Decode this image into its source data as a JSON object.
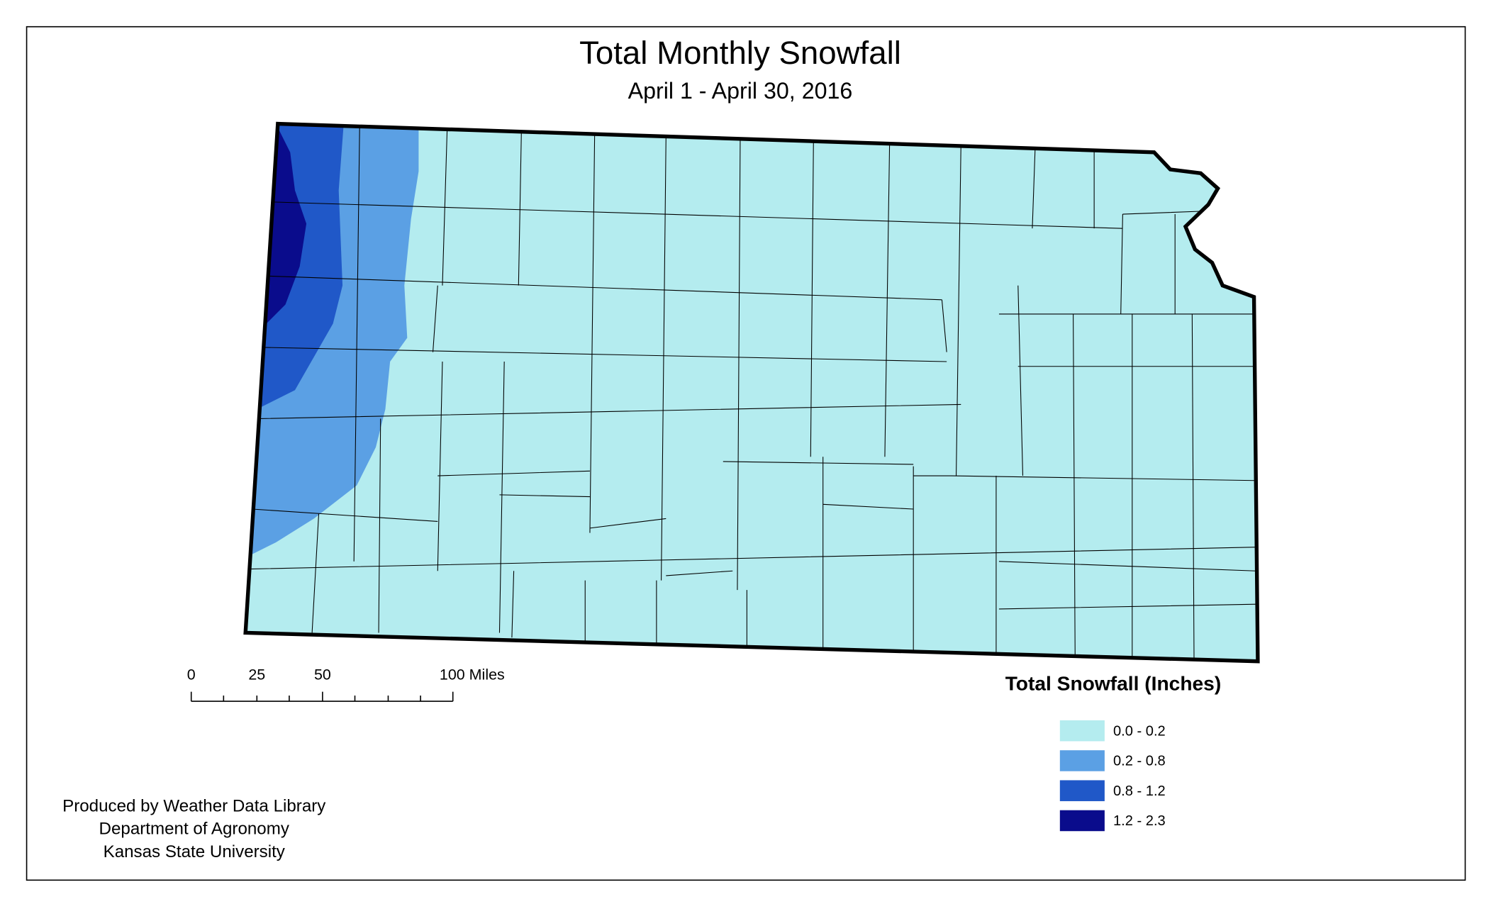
{
  "header": {
    "title": "Total Monthly Snowfall",
    "subtitle": "April 1 - April 30, 2016"
  },
  "scale_bar": {
    "labels": [
      "0",
      "25",
      "50",
      "100 Miles"
    ]
  },
  "legend": {
    "title": "Total Snowfall (Inches)",
    "items": [
      {
        "label": "0.0 - 0.2",
        "color": "#b4ecef"
      },
      {
        "label": "0.2 - 0.8",
        "color": "#5ba0e4"
      },
      {
        "label": "0.8 - 1.2",
        "color": "#2058c8"
      },
      {
        "label": "1.2 - 2.3",
        "color": "#0a0c8c"
      }
    ]
  },
  "credits": [
    "Produced by Weather Data Library",
    "Department of Agronomy",
    "Kansas State University"
  ]
}
